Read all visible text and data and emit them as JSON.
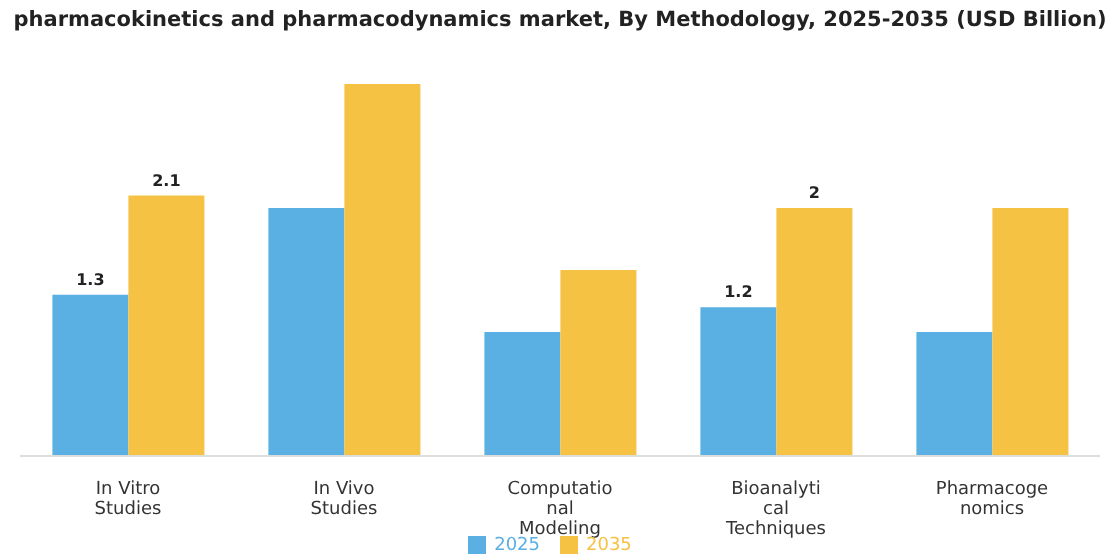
{
  "chart_data": {
    "type": "bar",
    "title": "pharmacokinetics and pharmacodynamics market, By Methodology, 2025-2035 (USD Billion)",
    "categories": [
      "In Vitro\nStudies",
      "In Vivo\nStudies",
      "Computatio\nnal\nModeling",
      "Bioanalyti\ncal\nTechniques",
      "Pharmacoge\nnomics"
    ],
    "series": [
      {
        "name": "2025",
        "color": "#5aafe3",
        "values": [
          1.3,
          2.0,
          1.0,
          1.2,
          1.0
        ],
        "value_labels": [
          "1.3",
          null,
          null,
          "1.2",
          null
        ]
      },
      {
        "name": "2035",
        "color": "#f6c244",
        "values": [
          2.1,
          3.0,
          1.5,
          2.0,
          2.0
        ],
        "value_labels": [
          "2.1",
          null,
          null,
          "2",
          null
        ]
      }
    ],
    "grid": false,
    "legend": "bottom"
  }
}
